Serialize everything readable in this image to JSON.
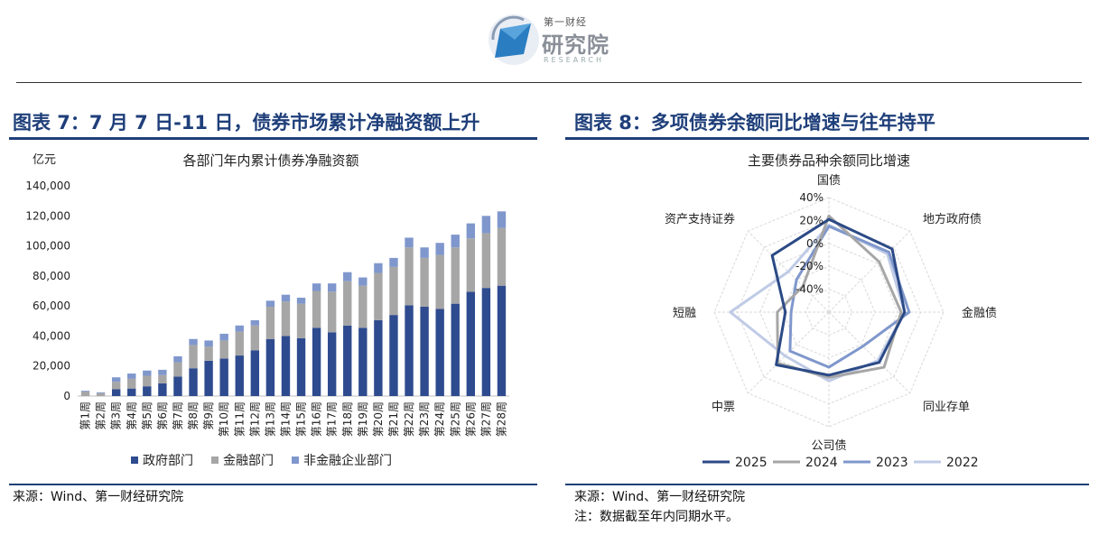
{
  "logo": {
    "small": "第一财经",
    "main": "研究院",
    "en": "RESEARCH",
    "icon": "diamond-logo-icon"
  },
  "left": {
    "panel_title": "图表 7：7 月 7 日-11 日，债券市场累计净融资额上升",
    "source": "来源：Wind、第一财经研究院"
  },
  "right": {
    "panel_title": "图表 8：多项债券余额同比增速与往年持平",
    "source": "来源：Wind、第一财经研究院",
    "note": "注：数据截至年内同期水平。"
  },
  "chart_data": [
    {
      "type": "bar",
      "stacked": true,
      "title": "各部门年内累计债券净融资额",
      "ylabel": "亿元",
      "ylim": [
        0,
        140000
      ],
      "yticks": [
        "0",
        "20,000",
        "40,000",
        "60,000",
        "80,000",
        "100,000",
        "120,000",
        "140,000"
      ],
      "ytick_values": [
        0,
        20000,
        40000,
        60000,
        80000,
        100000,
        120000,
        140000
      ],
      "legend_position": "bottom",
      "categories": [
        "第1周",
        "第2周",
        "第3周",
        "第4周",
        "第5周",
        "第6周",
        "第7周",
        "第8周",
        "第9周",
        "第10周",
        "第11周",
        "第12周",
        "第13周",
        "第14周",
        "第15周",
        "第16周",
        "第17周",
        "第18周",
        "第19周",
        "第20周",
        "第21周",
        "第22周",
        "第23周",
        "第24周",
        "第25周",
        "第26周",
        "第27周",
        "第28周"
      ],
      "series": [
        {
          "name": "政府部门",
          "color": "#2e4b8f",
          "values": [
            0,
            0,
            4500,
            5000,
            6500,
            8500,
            13000,
            18500,
            23500,
            25000,
            27000,
            30500,
            38000,
            40000,
            38500,
            45500,
            42500,
            47000,
            45500,
            50500,
            54000,
            60500,
            59500,
            58000,
            61500,
            69500,
            72000,
            73500
          ]
        },
        {
          "name": "金融部门",
          "color": "#a6a6a6",
          "values": [
            3000,
            2000,
            5000,
            6500,
            7000,
            5500,
            9500,
            15500,
            9500,
            12000,
            16000,
            16500,
            21500,
            23000,
            23000,
            24500,
            27000,
            29500,
            28000,
            31500,
            32000,
            38500,
            32500,
            36000,
            37500,
            35500,
            36500,
            38500
          ]
        },
        {
          "name": "非金融企业部门",
          "color": "#7f97cc",
          "values": [
            500,
            500,
            3000,
            3500,
            3500,
            3500,
            4000,
            4000,
            4000,
            4500,
            4000,
            3500,
            4000,
            4500,
            4000,
            5000,
            5500,
            6000,
            5500,
            6500,
            6000,
            6500,
            7000,
            8000,
            8500,
            10000,
            11500,
            11000
          ]
        }
      ]
    },
    {
      "type": "radar",
      "title": "主要债券品种余额同比增速",
      "axes": [
        "国债",
        "地方政府债",
        "金融债",
        "同业存单",
        "公司债",
        "中票",
        "短融",
        "资产支持证券"
      ],
      "rlim": [
        -60,
        40
      ],
      "rticks": [
        "40%",
        "20%",
        "0%",
        "-20%",
        "-40%"
      ],
      "rtick_values": [
        40,
        20,
        0,
        -20,
        -40
      ],
      "legend_position": "bottom",
      "series": [
        {
          "name": "2025",
          "color": "#2b4a86",
          "values": [
            21,
            18,
            6,
            2,
            -5,
            5,
            -22,
            10
          ]
        },
        {
          "name": "2024",
          "color": "#a6a6a6",
          "values": [
            24,
            2,
            3,
            8,
            -3,
            3,
            -15,
            -28
          ]
        },
        {
          "name": "2023",
          "color": "#7f97cc",
          "values": [
            15,
            14,
            10,
            -18,
            -12,
            -12,
            -27,
            -20
          ]
        },
        {
          "name": "2022",
          "color": "#bfcbe6",
          "values": [
            16,
            12,
            6,
            0,
            0,
            -6,
            26,
            -10
          ]
        }
      ]
    }
  ]
}
